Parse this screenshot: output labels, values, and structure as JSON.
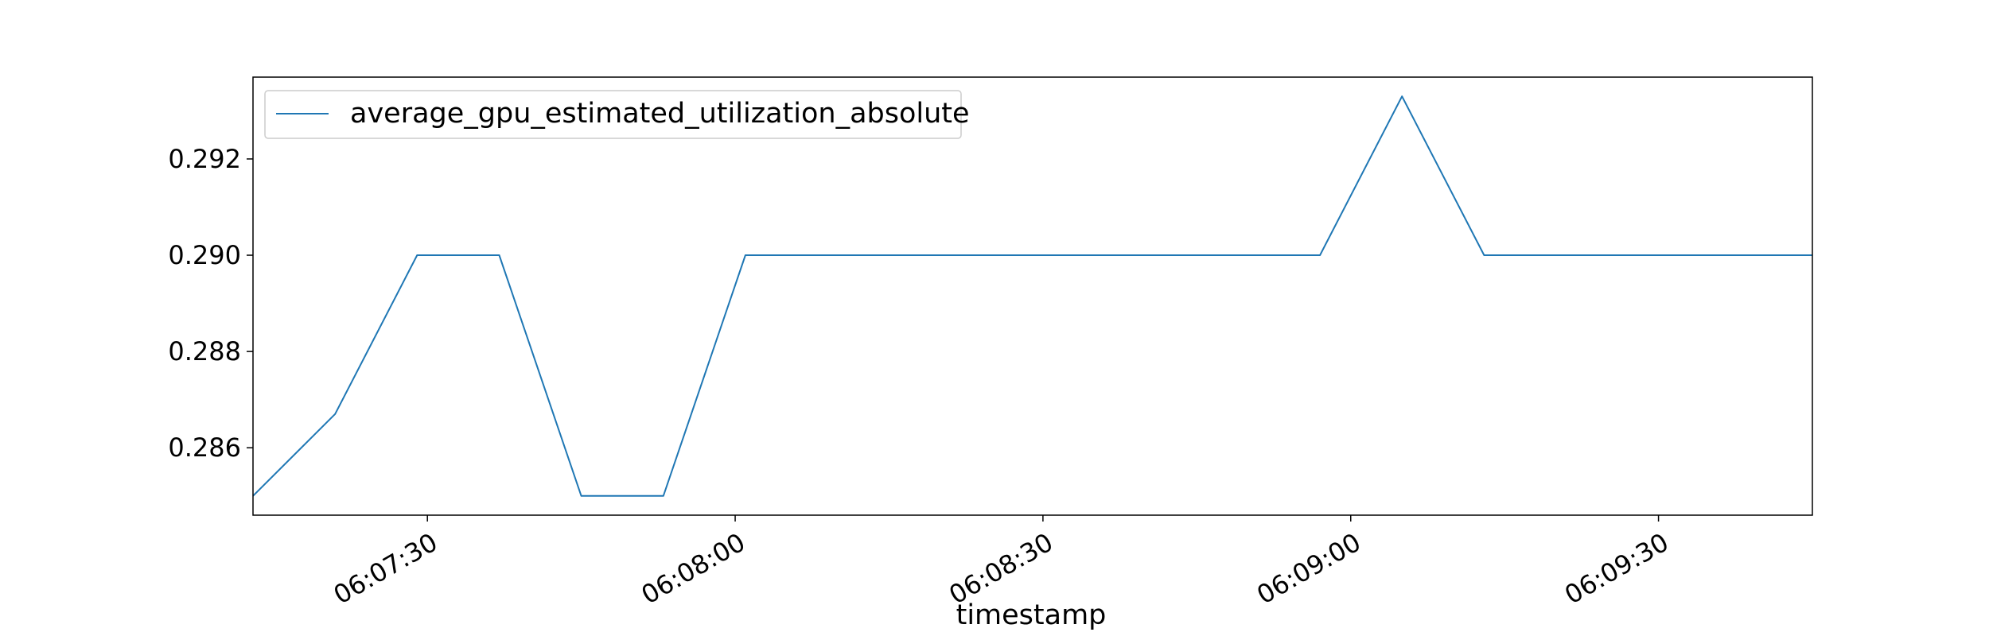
{
  "chart_data": {
    "type": "line",
    "title": "",
    "xlabel": "timestamp",
    "ylabel": "",
    "grid": false,
    "legend_position": "upper left",
    "series": [
      {
        "name": "average_gpu_estimated_utilization_absolute",
        "color": "#1f77b4",
        "x": [
          "06:07:13",
          "06:07:21",
          "06:07:29",
          "06:07:37",
          "06:07:45",
          "06:07:53",
          "06:08:01",
          "06:08:09",
          "06:08:17",
          "06:08:25",
          "06:08:33",
          "06:08:41",
          "06:08:49",
          "06:08:57",
          "06:09:05",
          "06:09:13",
          "06:09:21",
          "06:09:29",
          "06:09:37",
          "06:09:45"
        ],
        "values": [
          0.285,
          0.2867,
          0.29,
          0.29,
          0.285,
          0.285,
          0.29,
          0.29,
          0.29,
          0.29,
          0.29,
          0.29,
          0.29,
          0.29,
          0.2933,
          0.29,
          0.29,
          0.29,
          0.29,
          0.29
        ]
      }
    ],
    "xlim": [
      "06:07:13",
      "06:09:45"
    ],
    "ylim": [
      0.2846,
      0.2937
    ],
    "x_ticks": [
      "06:07:30",
      "06:08:00",
      "06:08:30",
      "06:09:00",
      "06:09:30"
    ],
    "y_ticks": [
      0.286,
      0.288,
      0.29,
      0.292
    ],
    "y_tick_labels": [
      "0.286",
      "0.288",
      "0.290",
      "0.292"
    ]
  }
}
